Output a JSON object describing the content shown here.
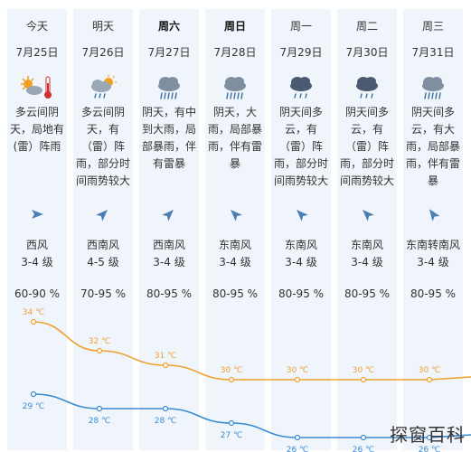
{
  "days": [
    {
      "weekday": "今天",
      "date": "7月25日",
      "bold": false,
      "icon": "sun-partly-cloudy-hot-icon",
      "desc": [
        "多云间阴",
        "天，局地有",
        "(雷）阵雨"
      ],
      "wind_dir": "西风",
      "wind_level": "3-4 级",
      "humidity": "60-90 %",
      "arrow_rotation_deg": 0
    },
    {
      "weekday": "明天",
      "date": "7月26日",
      "bold": false,
      "icon": "partly-cloudy-rain-icon",
      "desc": [
        "多云间阴",
        "天，有",
        "（雷）阵",
        "雨，部分时",
        "间雨势较大"
      ],
      "wind_dir": "西南风",
      "wind_level": "4-5 级",
      "humidity": "70-95 %",
      "arrow_rotation_deg": -45
    },
    {
      "weekday": "周六",
      "date": "7月27日",
      "bold": true,
      "icon": "heavy-rain-icon",
      "desc": [
        "阴天，有中",
        "到大雨，局",
        "部暴雨，伴",
        "有雷暴"
      ],
      "wind_dir": "西南风",
      "wind_level": "3-4 级",
      "humidity": "80-95 %",
      "arrow_rotation_deg": -45
    },
    {
      "weekday": "周日",
      "date": "7月28日",
      "bold": true,
      "icon": "heavy-rain-icon",
      "desc": [
        "阴天，大",
        "雨，局部暴",
        "雨，伴有雷",
        "暴"
      ],
      "wind_dir": "东南风",
      "wind_level": "3-4 级",
      "humidity": "80-95 %",
      "arrow_rotation_deg": 225
    },
    {
      "weekday": "周一",
      "date": "7月29日",
      "bold": false,
      "icon": "dark-cloud-rain-icon",
      "desc": [
        "阴天间多",
        "云，有",
        "（雷）阵",
        "雨，部分时",
        "间雨势较大"
      ],
      "wind_dir": "东南风",
      "wind_level": "3-4 级",
      "humidity": "80-95 %",
      "arrow_rotation_deg": 225
    },
    {
      "weekday": "周二",
      "date": "7月30日",
      "bold": false,
      "icon": "dark-cloud-rain-icon",
      "desc": [
        "阴天间多",
        "云，有",
        "（雷）阵",
        "雨，部分时",
        "间雨势较大"
      ],
      "wind_dir": "东南风",
      "wind_level": "3-4 级",
      "humidity": "80-95 %",
      "arrow_rotation_deg": 225
    },
    {
      "weekday": "周三",
      "date": "7月31日",
      "bold": false,
      "icon": "heavy-rain-icon",
      "desc": [
        "阴天间多",
        "云，有大",
        "雨，局部暴",
        "雨，伴有雷",
        "暴"
      ],
      "wind_dir": "东南转南风",
      "wind_level": "3-4 级",
      "humidity": "80-95 %",
      "arrow_rotation_deg": 235
    }
  ],
  "chart_data": {
    "type": "line",
    "categories": [
      "7月25日",
      "7月26日",
      "7月27日",
      "7月28日",
      "7月29日",
      "7月30日",
      "7月31日"
    ],
    "series": [
      {
        "values": [
          34,
          32,
          31,
          30,
          30,
          30,
          30
        ],
        "color": "#f0a030",
        "labels": [
          "34 ℃",
          "32 ℃",
          "31 ℃",
          "30 ℃",
          "30 ℃",
          "30 ℃",
          "30 ℃"
        ]
      },
      {
        "values": [
          29,
          28,
          28,
          27,
          26,
          26,
          26
        ],
        "color": "#3a8ad0",
        "labels": [
          "29 ℃",
          "28 ℃",
          "28 ℃",
          "27 ℃",
          "26 ℃",
          "26 ℃",
          "26 ℃"
        ]
      }
    ],
    "ylim": [
      25,
      35
    ]
  },
  "colors": {
    "card_bg": "#f0f5fb",
    "arrow": "#4a7fb5",
    "sun": "#f0a020",
    "cloud_light": "#9aa7b5",
    "cloud_dark": "#4a5a70",
    "rain": "#3a6fa0"
  },
  "watermark": "探窗百科"
}
